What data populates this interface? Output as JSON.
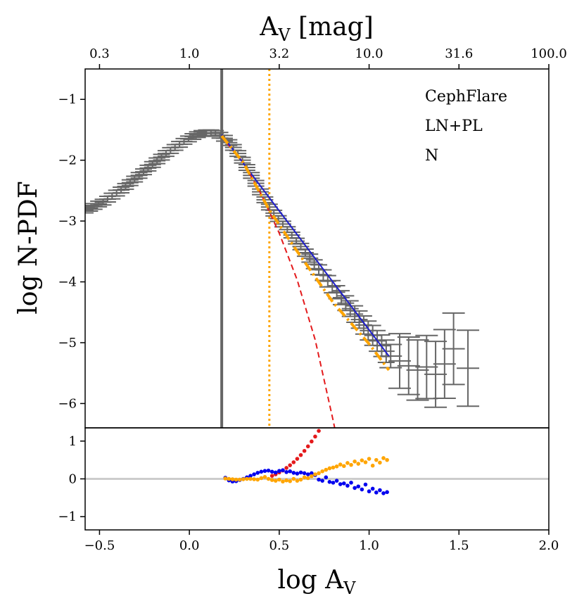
{
  "chart_data": {
    "type": "line",
    "title": "",
    "top_axis": {
      "label": "A_V [mag]",
      "label_main": "A",
      "label_sub": "V",
      "label_rest": " [mag]",
      "ticks": [
        {
          "pos": -0.5,
          "label": "0.3"
        },
        {
          "pos": 0.0,
          "label": "1.0"
        },
        {
          "pos": 0.5,
          "label": "3.2"
        },
        {
          "pos": 1.0,
          "label": "10.0"
        },
        {
          "pos": 1.5,
          "label": "31.6"
        },
        {
          "pos": 2.0,
          "label": "100.0"
        }
      ]
    },
    "xlabel": "log A_V",
    "xlabel_main": "log A",
    "xlabel_sub": "V",
    "ylabel": "log N-PDF",
    "xlim": [
      -0.58,
      2.0
    ],
    "xticks": [
      {
        "pos": -0.5,
        "label": "−0.5"
      },
      {
        "pos": 0.0,
        "label": "0.0"
      },
      {
        "pos": 0.5,
        "label": "0.5"
      },
      {
        "pos": 1.0,
        "label": "1.0"
      },
      {
        "pos": 1.5,
        "label": "1.5"
      },
      {
        "pos": 2.0,
        "label": "2.0"
      }
    ],
    "main_panel": {
      "ylim": [
        -6.4,
        -0.5
      ],
      "yticks": [
        {
          "pos": -1,
          "label": "−1"
        },
        {
          "pos": -2,
          "label": "−2"
        },
        {
          "pos": -3,
          "label": "−3"
        },
        {
          "pos": -4,
          "label": "−4"
        },
        {
          "pos": -5,
          "label": "−5"
        },
        {
          "pos": -6,
          "label": "−6"
        }
      ],
      "annotations": [
        "CephFlare",
        "LN+PL",
        "N"
      ],
      "vlines": [
        {
          "name": "completeness-limit",
          "x": 0.18,
          "color": "#666666",
          "style": "solid"
        },
        {
          "name": "pl-transition",
          "x": 0.445,
          "color": "#ffa500",
          "style": "dotted"
        }
      ],
      "data_points": [
        {
          "x": -0.58,
          "y": -2.82
        },
        {
          "x": -0.555,
          "y": -2.79
        },
        {
          "x": -0.53,
          "y": -2.76
        },
        {
          "x": -0.505,
          "y": -2.72
        },
        {
          "x": -0.48,
          "y": -2.69
        },
        {
          "x": -0.455,
          "y": -2.64
        },
        {
          "x": -0.43,
          "y": -2.59
        },
        {
          "x": -0.405,
          "y": -2.54
        },
        {
          "x": -0.38,
          "y": -2.49
        },
        {
          "x": -0.355,
          "y": -2.43
        },
        {
          "x": -0.33,
          "y": -2.37
        },
        {
          "x": -0.305,
          "y": -2.31
        },
        {
          "x": -0.28,
          "y": -2.25
        },
        {
          "x": -0.255,
          "y": -2.19
        },
        {
          "x": -0.23,
          "y": -2.13
        },
        {
          "x": -0.205,
          "y": -2.07
        },
        {
          "x": -0.18,
          "y": -2.01
        },
        {
          "x": -0.155,
          "y": -1.95
        },
        {
          "x": -0.13,
          "y": -1.89
        },
        {
          "x": -0.105,
          "y": -1.84
        },
        {
          "x": -0.08,
          "y": -1.79
        },
        {
          "x": -0.055,
          "y": -1.74
        },
        {
          "x": -0.03,
          "y": -1.69
        },
        {
          "x": -0.005,
          "y": -1.65
        },
        {
          "x": 0.02,
          "y": -1.61
        },
        {
          "x": 0.045,
          "y": -1.58
        },
        {
          "x": 0.07,
          "y": -1.56
        },
        {
          "x": 0.095,
          "y": -1.55
        },
        {
          "x": 0.12,
          "y": -1.55
        },
        {
          "x": 0.145,
          "y": -1.56
        },
        {
          "x": 0.17,
          "y": -1.59
        },
        {
          "x": 0.195,
          "y": -1.64
        },
        {
          "x": 0.22,
          "y": -1.71
        },
        {
          "x": 0.245,
          "y": -1.79
        },
        {
          "x": 0.27,
          "y": -1.89
        },
        {
          "x": 0.295,
          "y": -2.0
        },
        {
          "x": 0.32,
          "y": -2.12
        },
        {
          "x": 0.345,
          "y": -2.25
        },
        {
          "x": 0.37,
          "y": -2.38
        },
        {
          "x": 0.395,
          "y": -2.52
        },
        {
          "x": 0.42,
          "y": -2.65
        },
        {
          "x": 0.445,
          "y": -2.77
        },
        {
          "x": 0.47,
          "y": -2.87
        },
        {
          "x": 0.495,
          "y": -2.96
        },
        {
          "x": 0.52,
          "y": -3.05
        },
        {
          "x": 0.545,
          "y": -3.14
        },
        {
          "x": 0.57,
          "y": -3.23
        },
        {
          "x": 0.595,
          "y": -3.33
        },
        {
          "x": 0.62,
          "y": -3.42
        },
        {
          "x": 0.645,
          "y": -3.52
        },
        {
          "x": 0.67,
          "y": -3.61
        },
        {
          "x": 0.695,
          "y": -3.71
        },
        {
          "x": 0.72,
          "y": -3.8
        },
        {
          "x": 0.745,
          "y": -3.89
        },
        {
          "x": 0.77,
          "y": -3.99
        },
        {
          "x": 0.795,
          "y": -4.08
        },
        {
          "x": 0.82,
          "y": -4.17
        },
        {
          "x": 0.845,
          "y": -4.26
        },
        {
          "x": 0.87,
          "y": -4.35
        },
        {
          "x": 0.895,
          "y": -4.44
        },
        {
          "x": 0.92,
          "y": -4.53
        },
        {
          "x": 0.945,
          "y": -4.62
        },
        {
          "x": 0.97,
          "y": -4.71
        },
        {
          "x": 0.995,
          "y": -4.8
        },
        {
          "x": 1.02,
          "y": -4.88
        },
        {
          "x": 1.045,
          "y": -4.97
        },
        {
          "x": 1.07,
          "y": -5.05
        },
        {
          "x": 1.095,
          "y": -5.14
        },
        {
          "x": 1.12,
          "y": -5.22
        },
        {
          "x": 1.17,
          "y": -5.3
        },
        {
          "x": 1.22,
          "y": -5.38
        },
        {
          "x": 1.27,
          "y": -5.45
        },
        {
          "x": 1.32,
          "y": -5.4
        },
        {
          "x": 1.37,
          "y": -5.52
        },
        {
          "x": 1.42,
          "y": -5.35
        },
        {
          "x": 1.47,
          "y": -5.1
        },
        {
          "x": 1.55,
          "y": -5.42
        }
      ],
      "fits": [
        {
          "name": "log-normal",
          "color": "#e41a1c",
          "style": "dashed",
          "x": [
            0.18,
            0.3,
            0.4,
            0.5,
            0.6,
            0.7,
            0.8,
            0.81
          ],
          "y": [
            -1.62,
            -2.04,
            -2.56,
            -3.2,
            -3.97,
            -4.95,
            -6.28,
            -6.42
          ]
        },
        {
          "name": "power-law-N",
          "color": "#1f1fcc",
          "style": "solid",
          "x": [
            0.18,
            1.11
          ],
          "y": [
            -1.58,
            -5.22
          ]
        },
        {
          "name": "ln-pl-combined",
          "color": "#ffa500",
          "style": "dashdot",
          "x": [
            0.18,
            0.3,
            0.445,
            0.6,
            0.8,
            1.0,
            1.11
          ],
          "y": [
            -1.6,
            -2.04,
            -2.82,
            -3.5,
            -4.34,
            -5.02,
            -5.45
          ]
        }
      ]
    },
    "residual_panel": {
      "ylim": [
        -1.35,
        1.35
      ],
      "yticks": [
        {
          "pos": 1,
          "label": "1"
        },
        {
          "pos": 0,
          "label": "0"
        },
        {
          "pos": -1,
          "label": "−1"
        }
      ],
      "series": [
        {
          "name": "log-normal-residual",
          "color": "#e41a1c",
          "x": [
            0.46,
            0.48,
            0.5,
            0.52,
            0.54,
            0.56,
            0.58,
            0.6,
            0.62,
            0.64,
            0.66,
            0.68,
            0.7,
            0.72
          ],
          "y": [
            0.08,
            0.12,
            0.17,
            0.22,
            0.29,
            0.36,
            0.44,
            0.53,
            0.63,
            0.74,
            0.86,
            0.99,
            1.12,
            1.27
          ]
        },
        {
          "name": "power-law-residual",
          "color": "#0000ee",
          "x": [
            0.2,
            0.22,
            0.24,
            0.26,
            0.28,
            0.3,
            0.32,
            0.34,
            0.36,
            0.38,
            0.4,
            0.42,
            0.44,
            0.46,
            0.48,
            0.5,
            0.52,
            0.54,
            0.56,
            0.58,
            0.6,
            0.62,
            0.64,
            0.66,
            0.68,
            0.7,
            0.72,
            0.74,
            0.76,
            0.78,
            0.8,
            0.82,
            0.84,
            0.86,
            0.88,
            0.9,
            0.92,
            0.94,
            0.96,
            0.98,
            1.0,
            1.02,
            1.04,
            1.06,
            1.08,
            1.1
          ],
          "y": [
            0.03,
            -0.04,
            -0.07,
            -0.06,
            -0.03,
            0.0,
            0.04,
            0.08,
            0.12,
            0.16,
            0.19,
            0.21,
            0.22,
            0.19,
            0.17,
            0.21,
            0.23,
            0.18,
            0.2,
            0.16,
            0.14,
            0.17,
            0.15,
            0.12,
            0.15,
            0.1,
            -0.02,
            -0.05,
            0.04,
            -0.08,
            -0.1,
            -0.05,
            -0.14,
            -0.12,
            -0.18,
            -0.1,
            -0.24,
            -0.2,
            -0.28,
            -0.15,
            -0.33,
            -0.26,
            -0.36,
            -0.3,
            -0.38,
            -0.35
          ]
        },
        {
          "name": "ln-pl-residual",
          "color": "#ffa500",
          "x": [
            0.2,
            0.22,
            0.24,
            0.26,
            0.28,
            0.3,
            0.32,
            0.34,
            0.36,
            0.38,
            0.4,
            0.42,
            0.44,
            0.46,
            0.48,
            0.5,
            0.52,
            0.54,
            0.56,
            0.58,
            0.6,
            0.62,
            0.64,
            0.66,
            0.68,
            0.7,
            0.72,
            0.74,
            0.76,
            0.78,
            0.8,
            0.82,
            0.84,
            0.86,
            0.88,
            0.9,
            0.92,
            0.94,
            0.96,
            0.98,
            1.0,
            1.02,
            1.04,
            1.06,
            1.08,
            1.1
          ],
          "y": [
            0.01,
            0.0,
            -0.01,
            -0.02,
            -0.02,
            -0.01,
            0.0,
            0.0,
            -0.01,
            -0.02,
            0.02,
            0.05,
            0.0,
            -0.03,
            -0.05,
            -0.02,
            -0.07,
            -0.04,
            -0.06,
            0.0,
            -0.05,
            -0.02,
            0.04,
            0.02,
            0.07,
            0.12,
            0.15,
            0.2,
            0.24,
            0.28,
            0.3,
            0.33,
            0.38,
            0.34,
            0.42,
            0.37,
            0.46,
            0.4,
            0.49,
            0.44,
            0.53,
            0.35,
            0.5,
            0.43,
            0.55,
            0.5
          ]
        }
      ],
      "reference_line": {
        "y": 0,
        "color": "#cccccc"
      }
    }
  }
}
